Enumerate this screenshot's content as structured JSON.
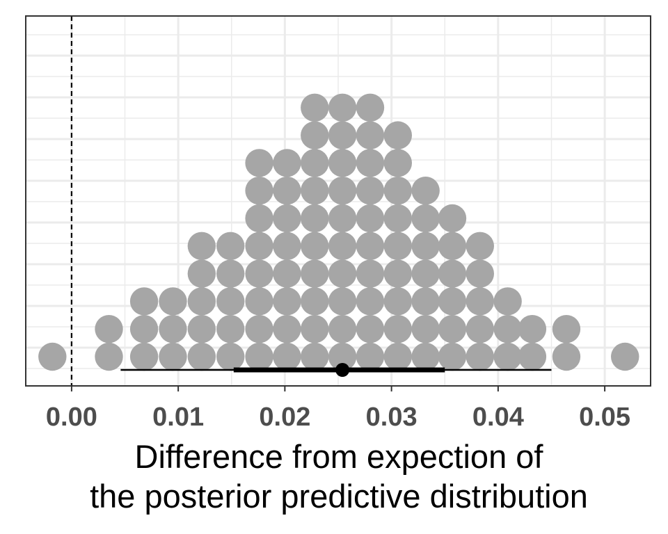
{
  "chart_data": {
    "type": "dotplot",
    "xlabel_lines": [
      "Difference from expection of",
      "the posterior predictive distribution"
    ],
    "xlim": [
      -0.0043,
      0.0543
    ],
    "x_ticks": [
      0.0,
      0.01,
      0.02,
      0.03,
      0.04,
      0.05
    ],
    "x_tick_labels": [
      "0.00",
      "0.01",
      "0.02",
      "0.03",
      "0.04",
      "0.05"
    ],
    "grid": true,
    "reference_line": {
      "x": 0.0,
      "style": "dashed"
    },
    "dot_color": "#a6a6a6",
    "stacks": [
      {
        "x": -0.0018,
        "count": 1
      },
      {
        "x": 0.0035,
        "count": 2
      },
      {
        "x": 0.0068,
        "count": 3
      },
      {
        "x": 0.0095,
        "count": 3
      },
      {
        "x": 0.0122,
        "count": 5
      },
      {
        "x": 0.0149,
        "count": 5
      },
      {
        "x": 0.0176,
        "count": 8
      },
      {
        "x": 0.0202,
        "count": 8
      },
      {
        "x": 0.0228,
        "count": 10
      },
      {
        "x": 0.0254,
        "count": 10
      },
      {
        "x": 0.028,
        "count": 10
      },
      {
        "x": 0.0306,
        "count": 9
      },
      {
        "x": 0.0332,
        "count": 7
      },
      {
        "x": 0.0357,
        "count": 6
      },
      {
        "x": 0.0383,
        "count": 5
      },
      {
        "x": 0.0409,
        "count": 3
      },
      {
        "x": 0.0432,
        "count": 2
      },
      {
        "x": 0.0464,
        "count": 2
      },
      {
        "x": 0.0519,
        "count": 1
      }
    ],
    "interval": {
      "point": 0.0254,
      "thick": [
        0.0152,
        0.035
      ],
      "thin": [
        0.0046,
        0.045
      ]
    }
  }
}
